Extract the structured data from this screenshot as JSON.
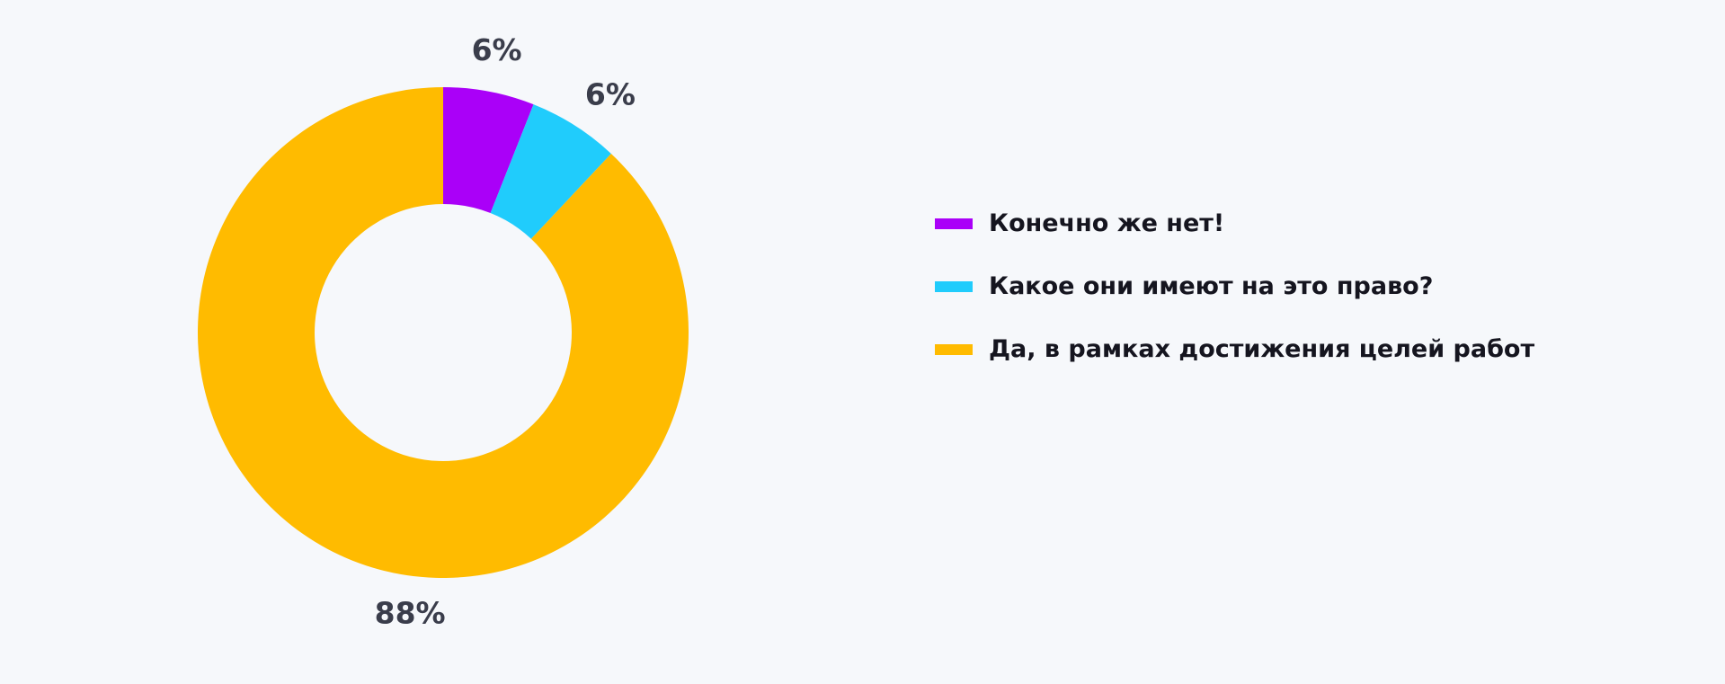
{
  "chart_data": {
    "type": "pie",
    "variant": "donut",
    "title": "",
    "categories": [
      "Конечно же нет!",
      "Какое они имеют на это право?",
      "Да, в рамках достижения целей работ"
    ],
    "values": [
      6,
      6,
      88
    ],
    "data_labels": [
      "6%",
      "6%",
      "88%"
    ],
    "colors": [
      "#aa00f8",
      "#20ccfc",
      "#ffbb00"
    ],
    "legend_position": "right"
  }
}
